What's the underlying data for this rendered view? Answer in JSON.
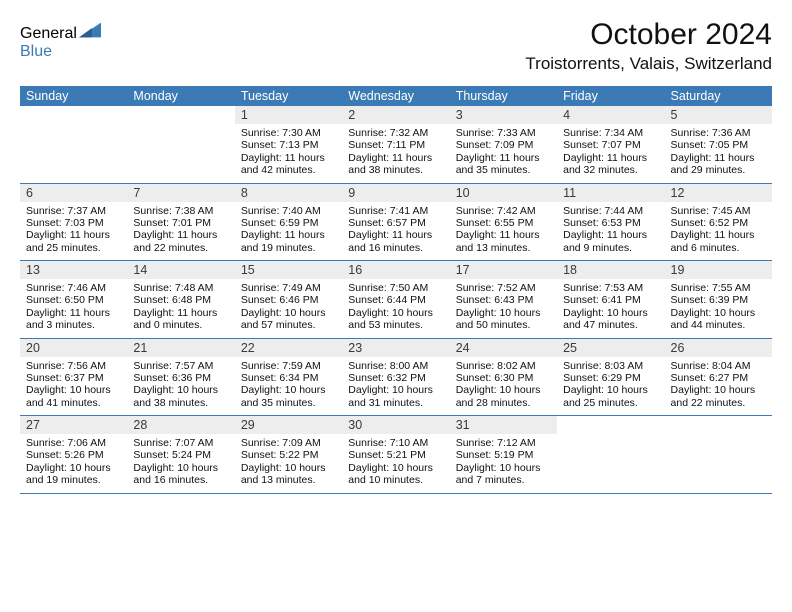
{
  "brand": {
    "textA": "General",
    "textB": "Blue",
    "colorA": "#595959",
    "colorB": "#3b7ab5"
  },
  "title": {
    "month": "October 2024",
    "location": "Troistorrents, Valais, Switzerland"
  },
  "colors": {
    "headerBg": "#3b7ab5",
    "headerText": "#ffffff",
    "dayBg": "#ededed",
    "ruler": "#3b7ab5"
  },
  "dayHeaders": [
    "Sunday",
    "Monday",
    "Tuesday",
    "Wednesday",
    "Thursday",
    "Friday",
    "Saturday"
  ],
  "weeks": [
    [
      null,
      null,
      {
        "n": "1",
        "sr": "7:30 AM",
        "ss": "7:13 PM",
        "dl": "11 hours and 42 minutes."
      },
      {
        "n": "2",
        "sr": "7:32 AM",
        "ss": "7:11 PM",
        "dl": "11 hours and 38 minutes."
      },
      {
        "n": "3",
        "sr": "7:33 AM",
        "ss": "7:09 PM",
        "dl": "11 hours and 35 minutes."
      },
      {
        "n": "4",
        "sr": "7:34 AM",
        "ss": "7:07 PM",
        "dl": "11 hours and 32 minutes."
      },
      {
        "n": "5",
        "sr": "7:36 AM",
        "ss": "7:05 PM",
        "dl": "11 hours and 29 minutes."
      }
    ],
    [
      {
        "n": "6",
        "sr": "7:37 AM",
        "ss": "7:03 PM",
        "dl": "11 hours and 25 minutes."
      },
      {
        "n": "7",
        "sr": "7:38 AM",
        "ss": "7:01 PM",
        "dl": "11 hours and 22 minutes."
      },
      {
        "n": "8",
        "sr": "7:40 AM",
        "ss": "6:59 PM",
        "dl": "11 hours and 19 minutes."
      },
      {
        "n": "9",
        "sr": "7:41 AM",
        "ss": "6:57 PM",
        "dl": "11 hours and 16 minutes."
      },
      {
        "n": "10",
        "sr": "7:42 AM",
        "ss": "6:55 PM",
        "dl": "11 hours and 13 minutes."
      },
      {
        "n": "11",
        "sr": "7:44 AM",
        "ss": "6:53 PM",
        "dl": "11 hours and 9 minutes."
      },
      {
        "n": "12",
        "sr": "7:45 AM",
        "ss": "6:52 PM",
        "dl": "11 hours and 6 minutes."
      }
    ],
    [
      {
        "n": "13",
        "sr": "7:46 AM",
        "ss": "6:50 PM",
        "dl": "11 hours and 3 minutes."
      },
      {
        "n": "14",
        "sr": "7:48 AM",
        "ss": "6:48 PM",
        "dl": "11 hours and 0 minutes."
      },
      {
        "n": "15",
        "sr": "7:49 AM",
        "ss": "6:46 PM",
        "dl": "10 hours and 57 minutes."
      },
      {
        "n": "16",
        "sr": "7:50 AM",
        "ss": "6:44 PM",
        "dl": "10 hours and 53 minutes."
      },
      {
        "n": "17",
        "sr": "7:52 AM",
        "ss": "6:43 PM",
        "dl": "10 hours and 50 minutes."
      },
      {
        "n": "18",
        "sr": "7:53 AM",
        "ss": "6:41 PM",
        "dl": "10 hours and 47 minutes."
      },
      {
        "n": "19",
        "sr": "7:55 AM",
        "ss": "6:39 PM",
        "dl": "10 hours and 44 minutes."
      }
    ],
    [
      {
        "n": "20",
        "sr": "7:56 AM",
        "ss": "6:37 PM",
        "dl": "10 hours and 41 minutes."
      },
      {
        "n": "21",
        "sr": "7:57 AM",
        "ss": "6:36 PM",
        "dl": "10 hours and 38 minutes."
      },
      {
        "n": "22",
        "sr": "7:59 AM",
        "ss": "6:34 PM",
        "dl": "10 hours and 35 minutes."
      },
      {
        "n": "23",
        "sr": "8:00 AM",
        "ss": "6:32 PM",
        "dl": "10 hours and 31 minutes."
      },
      {
        "n": "24",
        "sr": "8:02 AM",
        "ss": "6:30 PM",
        "dl": "10 hours and 28 minutes."
      },
      {
        "n": "25",
        "sr": "8:03 AM",
        "ss": "6:29 PM",
        "dl": "10 hours and 25 minutes."
      },
      {
        "n": "26",
        "sr": "8:04 AM",
        "ss": "6:27 PM",
        "dl": "10 hours and 22 minutes."
      }
    ],
    [
      {
        "n": "27",
        "sr": "7:06 AM",
        "ss": "5:26 PM",
        "dl": "10 hours and 19 minutes."
      },
      {
        "n": "28",
        "sr": "7:07 AM",
        "ss": "5:24 PM",
        "dl": "10 hours and 16 minutes."
      },
      {
        "n": "29",
        "sr": "7:09 AM",
        "ss": "5:22 PM",
        "dl": "10 hours and 13 minutes."
      },
      {
        "n": "30",
        "sr": "7:10 AM",
        "ss": "5:21 PM",
        "dl": "10 hours and 10 minutes."
      },
      {
        "n": "31",
        "sr": "7:12 AM",
        "ss": "5:19 PM",
        "dl": "10 hours and 7 minutes."
      },
      null,
      null
    ]
  ],
  "labels": {
    "sunrise": "Sunrise: ",
    "sunset": "Sunset: ",
    "daylight": "Daylight: "
  }
}
